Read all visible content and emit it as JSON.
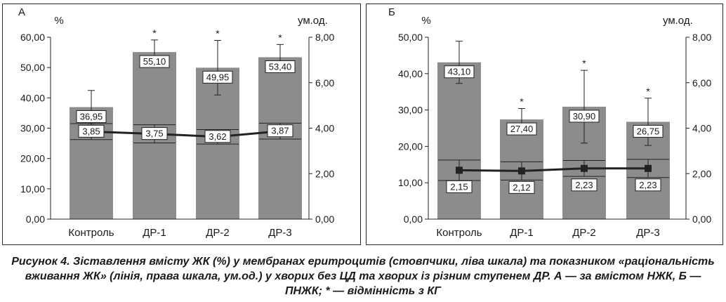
{
  "caption": "Рисунок 4. Зіставлення вмісту ЖК (%) у мембранах еритроцитів (стовпчики, ліва шкала) та показником «раціональність вживання ЖК» (лінія, права шкала, ум.од.) у хворих без ЦД та хворих із різним ступенем ДР. А — за вмістом НЖК, Б — ПНЖК; * — відмінність з КГ",
  "chart_data": [
    {
      "type": "bar",
      "panel_label": "А",
      "left_axis_unit": "%",
      "right_axis_unit": "ум.од.",
      "categories": [
        "Контроль",
        "ДР-1",
        "ДР-2",
        "ДР-3"
      ],
      "bars": {
        "values": [
          36.95,
          55.1,
          49.95,
          53.4
        ],
        "labels": [
          "36,95",
          "55,10",
          "49,95",
          "53,40"
        ],
        "error": [
          5.5,
          4.0,
          9.0,
          4.2
        ],
        "significant": [
          false,
          true,
          true,
          true
        ]
      },
      "line": {
        "values": [
          3.85,
          3.75,
          3.62,
          3.87
        ],
        "labels": [
          "3,85",
          "3,75",
          "3,62",
          "3,87"
        ],
        "error": [
          0.35,
          0.4,
          0.32,
          0.35
        ],
        "marker": "none"
      },
      "ylim_left": [
        0,
        60
      ],
      "yticks_left": [
        0,
        10,
        20,
        30,
        40,
        50,
        60
      ],
      "yticklabels_left": [
        "0,00",
        "10,00",
        "20,00",
        "30,00",
        "40,00",
        "50,00",
        "60,00"
      ],
      "ylim_right": [
        0,
        8
      ],
      "yticks_right": [
        0,
        2,
        4,
        6,
        8
      ],
      "yticklabels_right": [
        "0,00",
        "2,00",
        "4,00",
        "6,00",
        "8,00"
      ],
      "significance_mark": "*",
      "bar_color": "#8c8c8c",
      "line_color": "#222222"
    },
    {
      "type": "bar",
      "panel_label": "Б",
      "left_axis_unit": "%",
      "right_axis_unit": "ум.од.",
      "categories": [
        "Контроль",
        "ДР-1",
        "ДР-2",
        "ДР-3"
      ],
      "bars": {
        "values": [
          43.1,
          27.4,
          30.9,
          26.75
        ],
        "labels": [
          "43,10",
          "27,40",
          "30,90",
          "26,75"
        ],
        "error": [
          5.8,
          3.0,
          10.0,
          6.5
        ],
        "significant": [
          false,
          true,
          true,
          true
        ]
      },
      "line": {
        "values": [
          2.15,
          2.12,
          2.23,
          2.23
        ],
        "labels": [
          "2,15",
          "2,12",
          "2,23",
          "2,23"
        ],
        "error": [
          0.45,
          0.4,
          0.35,
          0.4
        ],
        "marker": "square"
      },
      "ylim_left": [
        0,
        50
      ],
      "yticks_left": [
        0,
        10,
        20,
        30,
        40,
        50
      ],
      "yticklabels_left": [
        "0,00",
        "10,00",
        "20,00",
        "30,00",
        "40,00",
        "50,00"
      ],
      "ylim_right": [
        0,
        8
      ],
      "yticks_right": [
        0,
        2,
        4,
        6,
        8
      ],
      "yticklabels_right": [
        "0,00",
        "2,00",
        "4,00",
        "6,00",
        "8,00"
      ],
      "significance_mark": "*",
      "bar_color": "#8c8c8c",
      "line_color": "#222222"
    }
  ]
}
